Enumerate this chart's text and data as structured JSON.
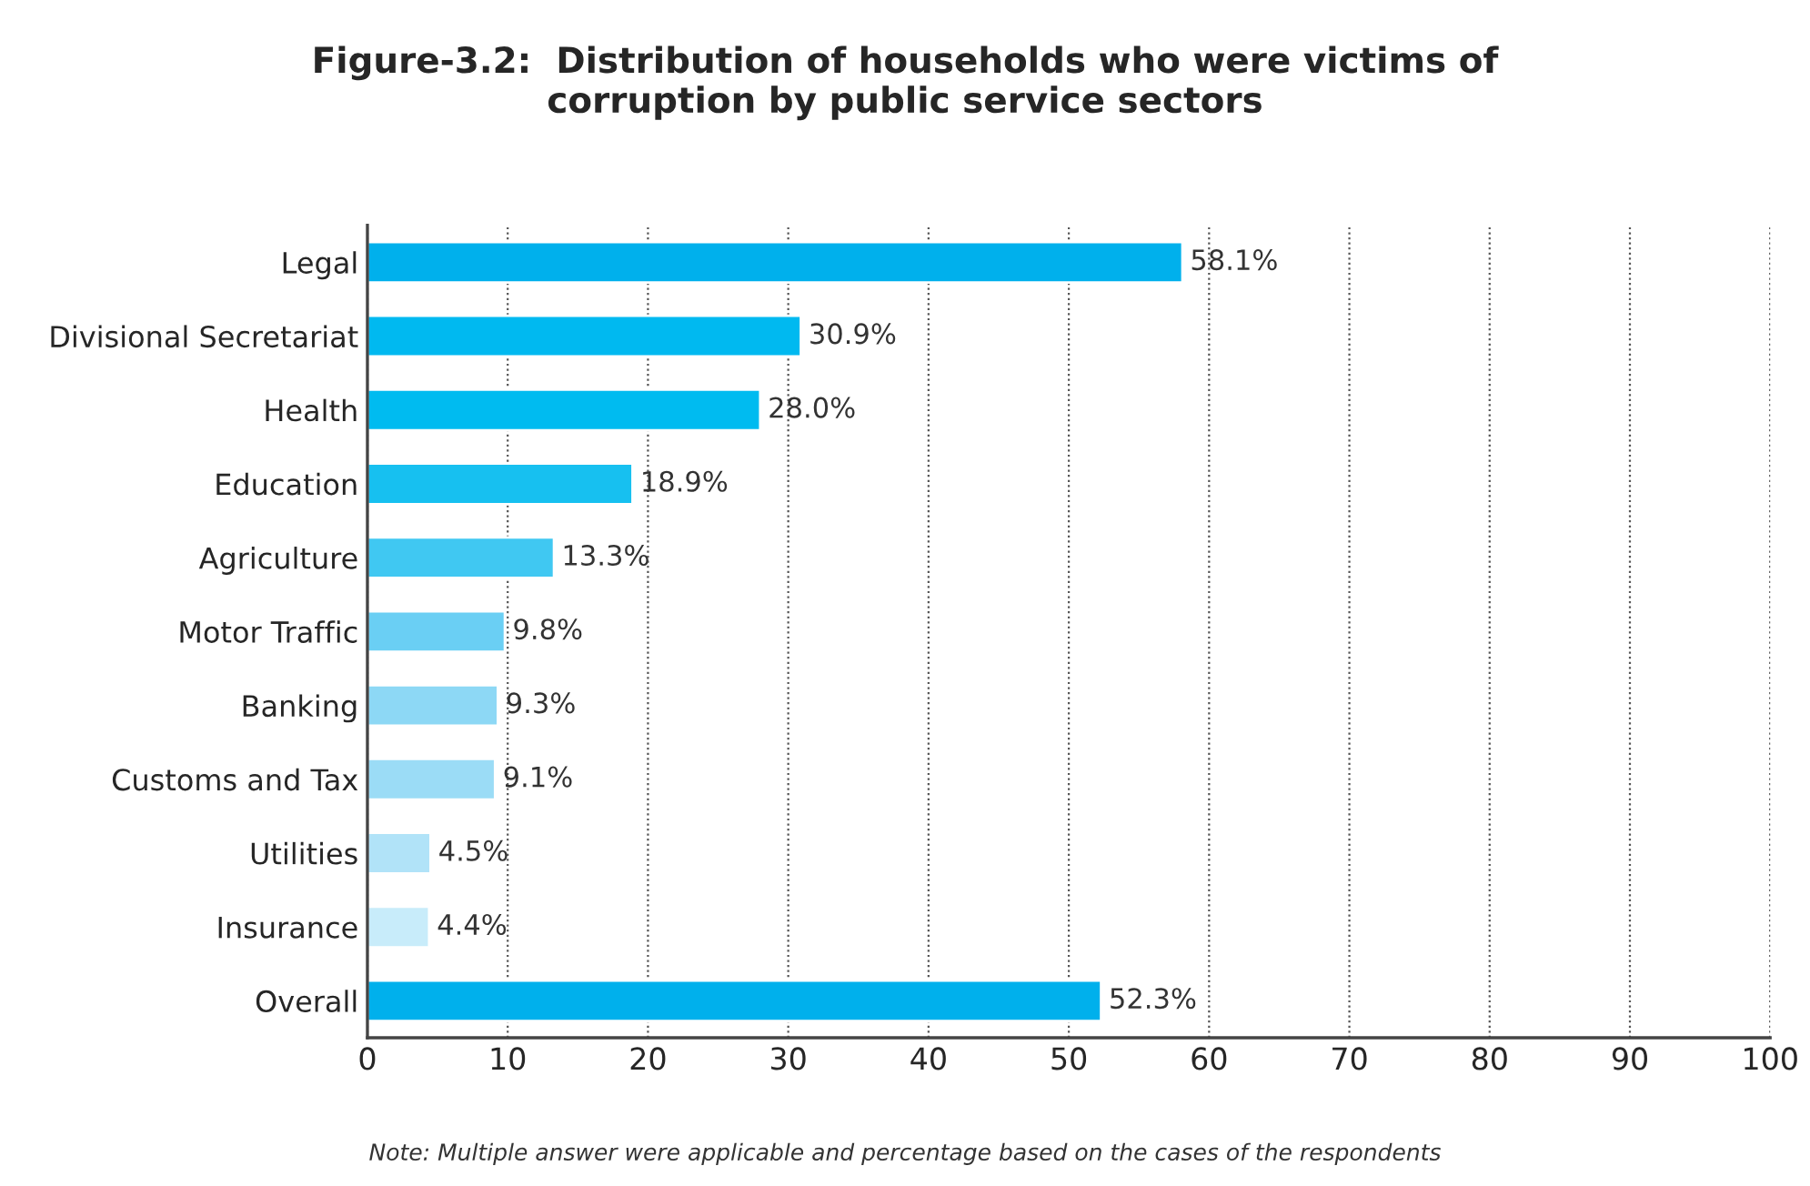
{
  "chart_data": {
    "type": "bar",
    "orientation": "horizontal",
    "title": "Figure-3.2:  Distribution of households who were victims of\ncorruption by public service sectors",
    "categories": [
      "Legal",
      "Divisional Secretariat",
      "Health",
      "Education",
      "Agriculture",
      "Motor Traffic",
      "Banking",
      "Customs and Tax",
      "Utilities",
      "Insurance",
      "Overall"
    ],
    "values": [
      58.1,
      30.9,
      28.0,
      18.9,
      13.3,
      9.8,
      9.3,
      9.1,
      4.5,
      4.4,
      52.3
    ],
    "colors": [
      "#00b0ec",
      "#00b9f0",
      "#00bbf0",
      "#17c0f0",
      "#40c8f2",
      "#6acff4",
      "#8dd8f5",
      "#9bdcf6",
      "#b1e3f8",
      "#c8ecfa",
      "#00b0ec"
    ],
    "value_labels": [
      "58.1%",
      "30.9%",
      "28.0%",
      "18.9%",
      "13.3%",
      "9.8%",
      "9.3%",
      "9.1%",
      "4.5%",
      "4.4%",
      "52.3%"
    ],
    "xlim": [
      0,
      100
    ],
    "xticks": [
      0,
      10,
      20,
      30,
      40,
      50,
      60,
      70,
      80,
      90,
      100
    ],
    "grid": "x",
    "legend": false,
    "annotations": [
      "Note: Multiple answer were applicable and percentage based on the cases of the respondents"
    ]
  }
}
